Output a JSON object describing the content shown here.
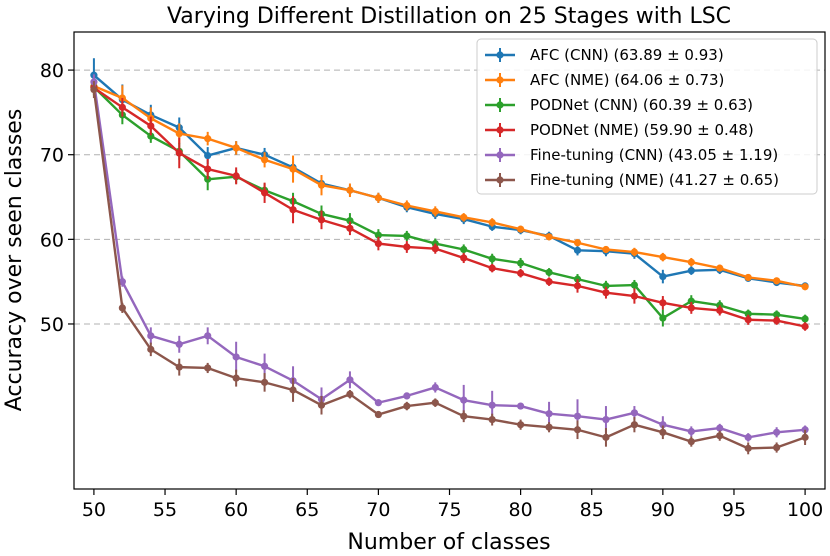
{
  "chart_data": {
    "type": "line",
    "title": "Varying Different Distillation on 25 Stages with LSC",
    "xlabel": "Number of classes",
    "ylabel": "Accuracy over seen classes",
    "xlim": [
      48.6,
      101.4
    ],
    "ylim": [
      30.5,
      84.5
    ],
    "xticks": [
      50,
      55,
      60,
      65,
      70,
      75,
      80,
      85,
      90,
      95,
      100
    ],
    "yticks": [
      50,
      60,
      70,
      80
    ],
    "grid": "horizontal dashed at y ticks",
    "legend_position": "top-right",
    "x": [
      50,
      52,
      54,
      56,
      58,
      60,
      62,
      64,
      66,
      68,
      70,
      72,
      74,
      76,
      78,
      80,
      82,
      84,
      86,
      88,
      90,
      92,
      94,
      96,
      98,
      100
    ],
    "series": [
      {
        "name": "AFC (CNN) (63.89 ± 0.93)",
        "color": "#1f77b4",
        "values": [
          79.4,
          76.5,
          74.7,
          73.2,
          69.9,
          70.8,
          70.0,
          68.5,
          66.6,
          65.8,
          64.9,
          63.8,
          63.0,
          62.4,
          61.5,
          61.1,
          60.4,
          58.7,
          58.6,
          58.3,
          55.6,
          56.3,
          56.4,
          55.4,
          54.9,
          54.5
        ],
        "errors": [
          2.0,
          1.8,
          1.2,
          1.2,
          1.0,
          0.8,
          0.8,
          0.7,
          0.7,
          0.6,
          0.6,
          0.6,
          0.6,
          0.6,
          0.5,
          0.5,
          0.5,
          0.6,
          0.6,
          0.6,
          0.8,
          0.5,
          0.5,
          0.4,
          0.4,
          0.4
        ]
      },
      {
        "name": "AFC (NME) (64.06 ± 0.73)",
        "color": "#ff7f0e",
        "values": [
          78.1,
          76.7,
          74.3,
          72.5,
          71.9,
          70.8,
          69.4,
          68.3,
          66.4,
          65.8,
          64.9,
          64.0,
          63.3,
          62.6,
          62.0,
          61.2,
          60.3,
          59.6,
          58.8,
          58.5,
          57.9,
          57.3,
          56.6,
          55.5,
          55.1,
          54.4
        ],
        "errors": [
          0.8,
          1.5,
          1.3,
          1.2,
          0.8,
          0.8,
          0.9,
          1.6,
          1.2,
          0.8,
          0.6,
          0.6,
          0.6,
          0.5,
          0.5,
          0.4,
          0.4,
          0.4,
          0.4,
          0.5,
          0.5,
          0.5,
          0.4,
          0.4,
          0.4,
          0.4
        ]
      },
      {
        "name": "PODNet (CNN) (60.39 ± 0.63)",
        "color": "#2ca02c",
        "values": [
          78.0,
          74.7,
          72.2,
          70.4,
          67.1,
          67.4,
          65.8,
          64.5,
          63.0,
          62.2,
          60.5,
          60.4,
          59.5,
          58.8,
          57.7,
          57.2,
          56.1,
          55.3,
          54.5,
          54.6,
          50.7,
          52.7,
          52.2,
          51.2,
          51.1,
          50.6
        ],
        "errors": [
          1.0,
          1.1,
          0.8,
          1.0,
          1.3,
          0.8,
          0.8,
          1.0,
          1.0,
          0.9,
          0.7,
          0.6,
          0.6,
          0.6,
          0.6,
          0.6,
          0.5,
          0.6,
          0.6,
          0.6,
          1.0,
          0.7,
          0.6,
          0.5,
          0.5,
          0.5
        ]
      },
      {
        "name": "PODNet (NME) (59.90 ± 0.48)",
        "color": "#d62728",
        "values": [
          77.9,
          75.6,
          73.4,
          70.2,
          68.3,
          67.5,
          65.5,
          63.5,
          62.3,
          61.3,
          59.5,
          59.1,
          58.9,
          57.8,
          56.6,
          56.0,
          55.0,
          54.5,
          53.7,
          53.3,
          52.5,
          51.9,
          51.6,
          50.5,
          50.4,
          49.7
        ],
        "errors": [
          0.8,
          1.1,
          1.1,
          1.8,
          1.2,
          1.0,
          1.2,
          1.6,
          1.1,
          0.8,
          0.8,
          0.7,
          0.6,
          0.6,
          0.5,
          0.5,
          0.5,
          0.8,
          0.7,
          0.9,
          0.8,
          0.7,
          0.6,
          0.6,
          0.5,
          0.5
        ]
      },
      {
        "name": "Fine-tuning (CNN) (43.05 ± 1.19)",
        "color": "#9467bd",
        "values": [
          78.6,
          55.0,
          48.6,
          47.6,
          48.6,
          46.1,
          45.0,
          43.3,
          41.1,
          43.4,
          40.7,
          41.5,
          42.5,
          41.0,
          40.4,
          40.3,
          39.4,
          39.1,
          38.7,
          39.5,
          38.1,
          37.3,
          37.7,
          36.6,
          37.2,
          37.5
        ],
        "errors": [
          0.9,
          0.6,
          1.0,
          1.0,
          1.0,
          1.8,
          1.5,
          1.7,
          1.4,
          1.0,
          0.4,
          0.4,
          0.6,
          1.8,
          1.7,
          0.3,
          1.4,
          2.0,
          1.6,
          0.8,
          1.0,
          0.6,
          0.5,
          0.5,
          0.6,
          0.5
        ]
      },
      {
        "name": "Fine-tuning (NME) (41.27 ± 0.65)",
        "color": "#8c564b",
        "values": [
          77.7,
          51.9,
          47.0,
          44.9,
          44.8,
          43.6,
          43.1,
          42.2,
          40.4,
          41.7,
          39.3,
          40.3,
          40.7,
          39.1,
          38.7,
          38.1,
          37.8,
          37.5,
          36.6,
          38.1,
          37.2,
          36.1,
          36.8,
          35.3,
          35.4,
          36.6
        ],
        "errors": [
          1.0,
          0.6,
          0.8,
          1.0,
          0.6,
          1.0,
          1.1,
          1.4,
          1.1,
          0.5,
          0.4,
          0.5,
          0.5,
          0.7,
          0.7,
          0.6,
          0.6,
          1.1,
          1.1,
          0.9,
          0.8,
          0.6,
          0.6,
          0.7,
          0.6,
          0.9
        ]
      }
    ]
  }
}
